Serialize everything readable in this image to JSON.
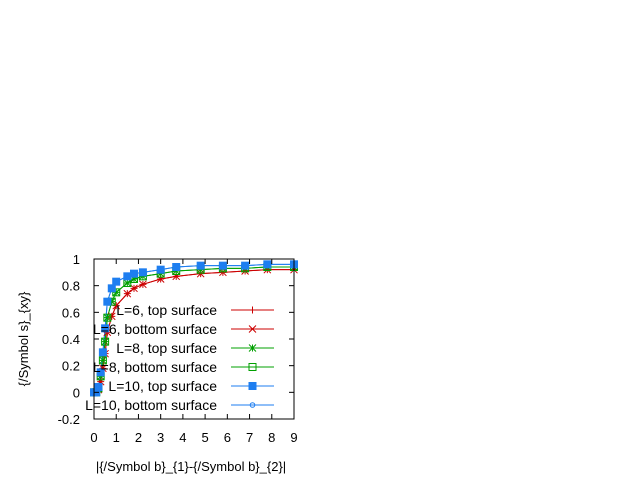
{
  "chart_data": {
    "type": "line",
    "title": "",
    "xlabel": "|{/Symbol b}_{1}-{/Symbol b}_{2}|",
    "ylabel": "{/Symbol s}_{xy}",
    "xlim": [
      0,
      9
    ],
    "ylim": [
      -0.2,
      1
    ],
    "xticks": [
      "0",
      "1",
      "2",
      "3",
      "4",
      "5",
      "6",
      "7",
      "8",
      "9"
    ],
    "yticks": [
      "-0.2",
      "0",
      "0.2",
      "0.4",
      "0.6",
      "0.8",
      "1"
    ],
    "grid": false,
    "legend_position": "center-right",
    "x": [
      0,
      0.1,
      0.2,
      0.3,
      0.4,
      0.5,
      0.6,
      0.8,
      1.0,
      1.5,
      1.8,
      2.2,
      3.0,
      3.7,
      4.8,
      5.8,
      6.8,
      7.8,
      9.0
    ],
    "series": [
      {
        "name": "L=6, top surface",
        "color": "#cc0000",
        "marker": "plus",
        "values": [
          0.0,
          0.0,
          0.02,
          0.08,
          0.18,
          0.29,
          0.45,
          0.57,
          0.65,
          0.74,
          0.78,
          0.81,
          0.85,
          0.87,
          0.89,
          0.9,
          0.91,
          0.92,
          0.92
        ]
      },
      {
        "name": "L=6, bottom surface",
        "color": "#cc0000",
        "marker": "cross",
        "values": [
          0.0,
          0.0,
          0.02,
          0.08,
          0.18,
          0.29,
          0.45,
          0.57,
          0.65,
          0.74,
          0.78,
          0.81,
          0.85,
          0.87,
          0.89,
          0.9,
          0.91,
          0.92,
          0.92
        ]
      },
      {
        "name": "L=8, top surface",
        "color": "#00a000",
        "marker": "star",
        "values": [
          0.0,
          0.0,
          0.03,
          0.12,
          0.24,
          0.38,
          0.56,
          0.68,
          0.75,
          0.82,
          0.85,
          0.87,
          0.89,
          0.91,
          0.92,
          0.93,
          0.93,
          0.94,
          0.94
        ]
      },
      {
        "name": "L=8, bottom surface",
        "color": "#00a000",
        "marker": "open-square",
        "values": [
          0.0,
          0.0,
          0.03,
          0.12,
          0.24,
          0.38,
          0.56,
          0.68,
          0.75,
          0.82,
          0.85,
          0.87,
          0.89,
          0.91,
          0.92,
          0.93,
          0.93,
          0.94,
          0.94
        ]
      },
      {
        "name": "L=10, top surface",
        "color": "#1e7ef0",
        "marker": "filled-square",
        "values": [
          0.0,
          0.0,
          0.04,
          0.15,
          0.3,
          0.48,
          0.68,
          0.78,
          0.83,
          0.87,
          0.89,
          0.9,
          0.92,
          0.94,
          0.95,
          0.95,
          0.95,
          0.96,
          0.96
        ]
      },
      {
        "name": "L=10, bottom surface",
        "color": "#1e7ef0",
        "marker": "open-circle",
        "values": [
          0.0,
          0.0,
          0.04,
          0.15,
          0.3,
          0.48,
          0.68,
          0.78,
          0.83,
          0.87,
          0.89,
          0.9,
          0.92,
          0.94,
          0.95,
          0.95,
          0.95,
          0.96,
          0.96
        ]
      }
    ]
  }
}
